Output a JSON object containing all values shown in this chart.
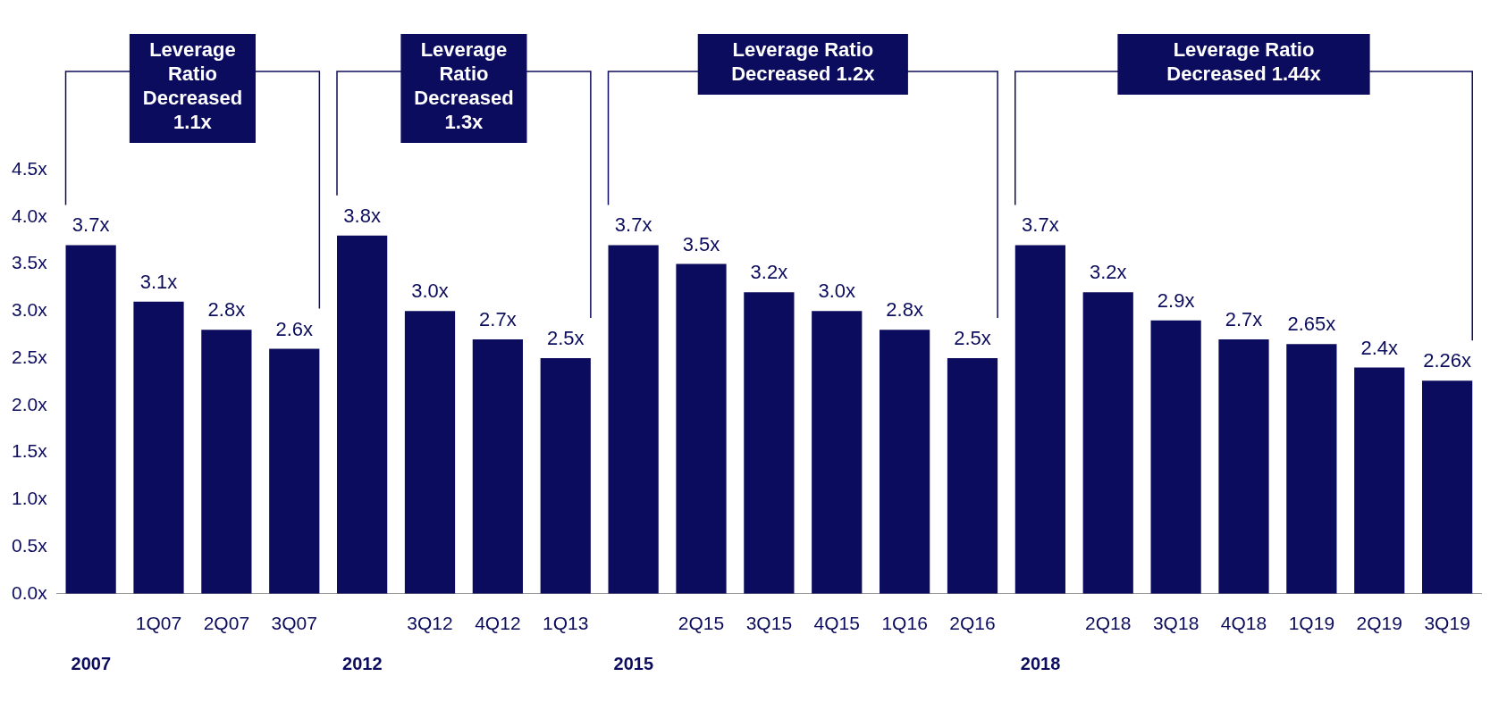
{
  "chart_data": {
    "type": "bar",
    "color": "#0c0c5e",
    "categories": [
      null,
      "1Q07",
      "2Q07",
      "3Q07",
      null,
      "3Q12",
      "4Q12",
      "1Q13",
      null,
      "2Q15",
      "3Q15",
      "4Q15",
      "1Q16",
      "2Q16",
      null,
      "2Q18",
      "3Q18",
      "4Q18",
      "1Q19",
      "2Q19",
      "3Q19"
    ],
    "values": [
      3.7,
      3.1,
      2.8,
      2.6,
      3.8,
      3.0,
      2.7,
      2.5,
      3.7,
      3.5,
      3.2,
      3.0,
      2.8,
      2.5,
      3.7,
      3.2,
      2.9,
      2.7,
      2.65,
      2.4,
      2.26
    ],
    "value_labels": [
      "3.7x",
      "3.1x",
      "2.8x",
      "2.6x",
      "3.8x",
      "3.0x",
      "2.7x",
      "2.5x",
      "3.7x",
      "3.5x",
      "3.2x",
      "3.0x",
      "2.8x",
      "2.5x",
      "3.7x",
      "3.2x",
      "2.9x",
      "2.7x",
      "2.65x",
      "2.4x",
      "2.26x"
    ],
    "ylim": [
      0,
      4.5
    ],
    "yticks": [
      {
        "value": 0,
        "label": "0.0x"
      },
      {
        "value": 0.5,
        "label": "0.5x"
      },
      {
        "value": 1,
        "label": "1.0x"
      },
      {
        "value": 1.5,
        "label": "1.5x"
      },
      {
        "value": 2,
        "label": "2.0x"
      },
      {
        "value": 2.5,
        "label": "2.5x"
      },
      {
        "value": 3,
        "label": "3.0x"
      },
      {
        "value": 3.5,
        "label": "3.5x"
      },
      {
        "value": 4,
        "label": "4.0x"
      },
      {
        "value": 4.5,
        "label": "4.5x"
      }
    ],
    "grid": false,
    "legend": false,
    "annotations": [
      "Leverage Ratio Decreased 1.1x",
      "Leverage Ratio Decreased 1.3x",
      "Leverage Ratio Decreased 1.2x",
      "Leverage Ratio Decreased 1.44x",
      "2007",
      "2012",
      "2015",
      "2018"
    ]
  }
}
